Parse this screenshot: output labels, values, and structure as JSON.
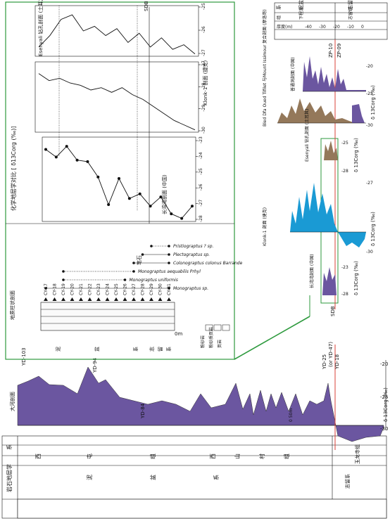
{
  "figure": {
    "stratigraphy_column": {
      "header": "岩石地层学",
      "left_header": "系",
      "systems": [
        "泥",
        "盆",
        "系"
      ],
      "series_upper": [
        "西",
        "屯",
        "组"
      ],
      "series_lower": [
        "西",
        "山",
        "村",
        "组"
      ],
      "silurian": "志留系",
      "silurian_sub": "玉龙寺组"
    },
    "dahe_profile": {
      "label": "大河剖面",
      "samples": [
        "YD-103",
        "YD-94",
        "YD-84",
        "YD-25",
        "(or YD-47)",
        "YD-18"
      ],
      "x_ticks": [
        "-30",
        "-25",
        "-20"
      ],
      "x_label": "δ 13Corg (‰)",
      "scale_label": "0   50m"
    },
    "shanhu_panel": {
      "section_title": "地质柱状剖面",
      "samples": [
        "CY-17",
        "CY-18",
        "CY-19",
        "CY-20",
        "CY-21",
        "CY-22",
        "CY-23",
        "CY-24",
        "CY-25",
        "CY-26",
        "CY-27",
        "CY-28",
        "CY-29",
        "CY-30",
        "CY-31"
      ],
      "scale": "10m",
      "scale_zero": "0m",
      "legend": [
        "粉砂岩",
        "粉砂质页岩",
        "页岩"
      ],
      "system_labels": [
        "泥",
        "盆",
        "系"
      ],
      "silurian_labels": [
        "志",
        "留",
        "系"
      ],
      "graptolite_header": "笔石",
      "taxa": [
        "Monograptus sp.",
        "Monograptus uniformis",
        "Monograptus aequabilis Prhyl",
        "Colonograptus colonus Barrande",
        "Plectograptus sp.",
        "Pristiograptus ? sp."
      ]
    },
    "chemo_panel": {
      "title": "化学地层学对比 [ δ13Corg (‰)]",
      "shanhu_label": "长湾湾剖面 (中国)",
      "klonk_label": "Klonk-1 剖面 (捷克)",
      "esenyali_label": "Esenyali 钻孔剖面 (土耳其)",
      "sdb": "SDB",
      "shanhu_ticks": [
        "-28",
        "-27",
        "-26",
        "-25",
        "-24",
        "-23"
      ],
      "klonk_ticks": [
        "-30",
        "-29",
        "-28",
        "-27"
      ],
      "esen_ticks": [
        "-27",
        "-26",
        "-25"
      ]
    },
    "right_panel": {
      "header": [
        "系",
        "泥盆系",
        "志留系"
      ],
      "stage": [
        "组",
        "下程泥",
        "志留统"
      ],
      "thickness": [
        "厚度(m)",
        "-40",
        "-30",
        "-20",
        "-10",
        "0"
      ],
      "zp": [
        "ZP-10",
        "ZP-09"
      ],
      "profiles": [
        "普通洞剖面 (中国)",
        "Bled Dfa Oued Tifilet 与Mount Issimour 复合剖面 (摩洛哥)",
        "Esenyali 钻孔剖面 (土耳其)",
        "Klonk-1 剖面 (捷克)",
        "长湾湾剖面 (中国)"
      ],
      "axis_label": "δ 13Corg (‰)",
      "ticks_a": [
        "-30",
        "-25",
        "-20"
      ],
      "ticks_b": [
        "-25",
        "-28"
      ],
      "ticks_c": [
        "-27",
        "-30"
      ],
      "ticks_d": [
        "-23",
        "-28"
      ],
      "sdb": "SDB"
    },
    "colors": {
      "purple": "#6b56a0",
      "brown": "#94785a",
      "blue": "#1a9ad4",
      "green_box": "#2e9a3e",
      "red_line": "#d9403a"
    }
  },
  "chart_data": [
    {
      "type": "line",
      "title": "长湾湾剖面 (中国)",
      "xlabel": "δ13Corg (‰)",
      "x": [
        "CY-17",
        "CY-18",
        "CY-19",
        "CY-20",
        "CY-21",
        "CY-22",
        "CY-23",
        "CY-24",
        "CY-25",
        "CY-26",
        "CY-27",
        "CY-28",
        "CY-29",
        "CY-30",
        "CY-31"
      ],
      "values": [
        -23.8,
        -24.3,
        -23.6,
        -24.5,
        -24.6,
        -25.6,
        -27.4,
        -25.7,
        -27.0,
        -26.7,
        -27.5,
        -26.9,
        -28.0,
        -28.3,
        -27.5
      ],
      "ylim": [
        -28.5,
        -23
      ]
    },
    {
      "type": "line",
      "title": "Klonk-1 剖面 (捷克)",
      "xlabel": "δ13Corg (‰)",
      "values": [
        -27.5,
        -27.8,
        -27.7,
        -27.9,
        -28.0,
        -28.2,
        -28.1,
        -28.3,
        -28.1,
        -28.4,
        -28.6,
        -28.9,
        -29.2,
        -29.5,
        -29.7,
        -29.9
      ],
      "ylim": [
        -30,
        -27
      ]
    },
    {
      "type": "line",
      "title": "Esenyali 钻孔剖面 (土耳其)",
      "xlabel": "δ13Corg (‰)",
      "values": [
        -26.8,
        -26.3,
        -25.6,
        -25.4,
        -26.1,
        -25.9,
        -26.3,
        -26.0,
        -26.6,
        -26.2,
        -26.8,
        -26.4,
        -26.9,
        -26.7,
        -27.1
      ],
      "ylim": [
        -27.2,
        -25
      ]
    }
  ]
}
